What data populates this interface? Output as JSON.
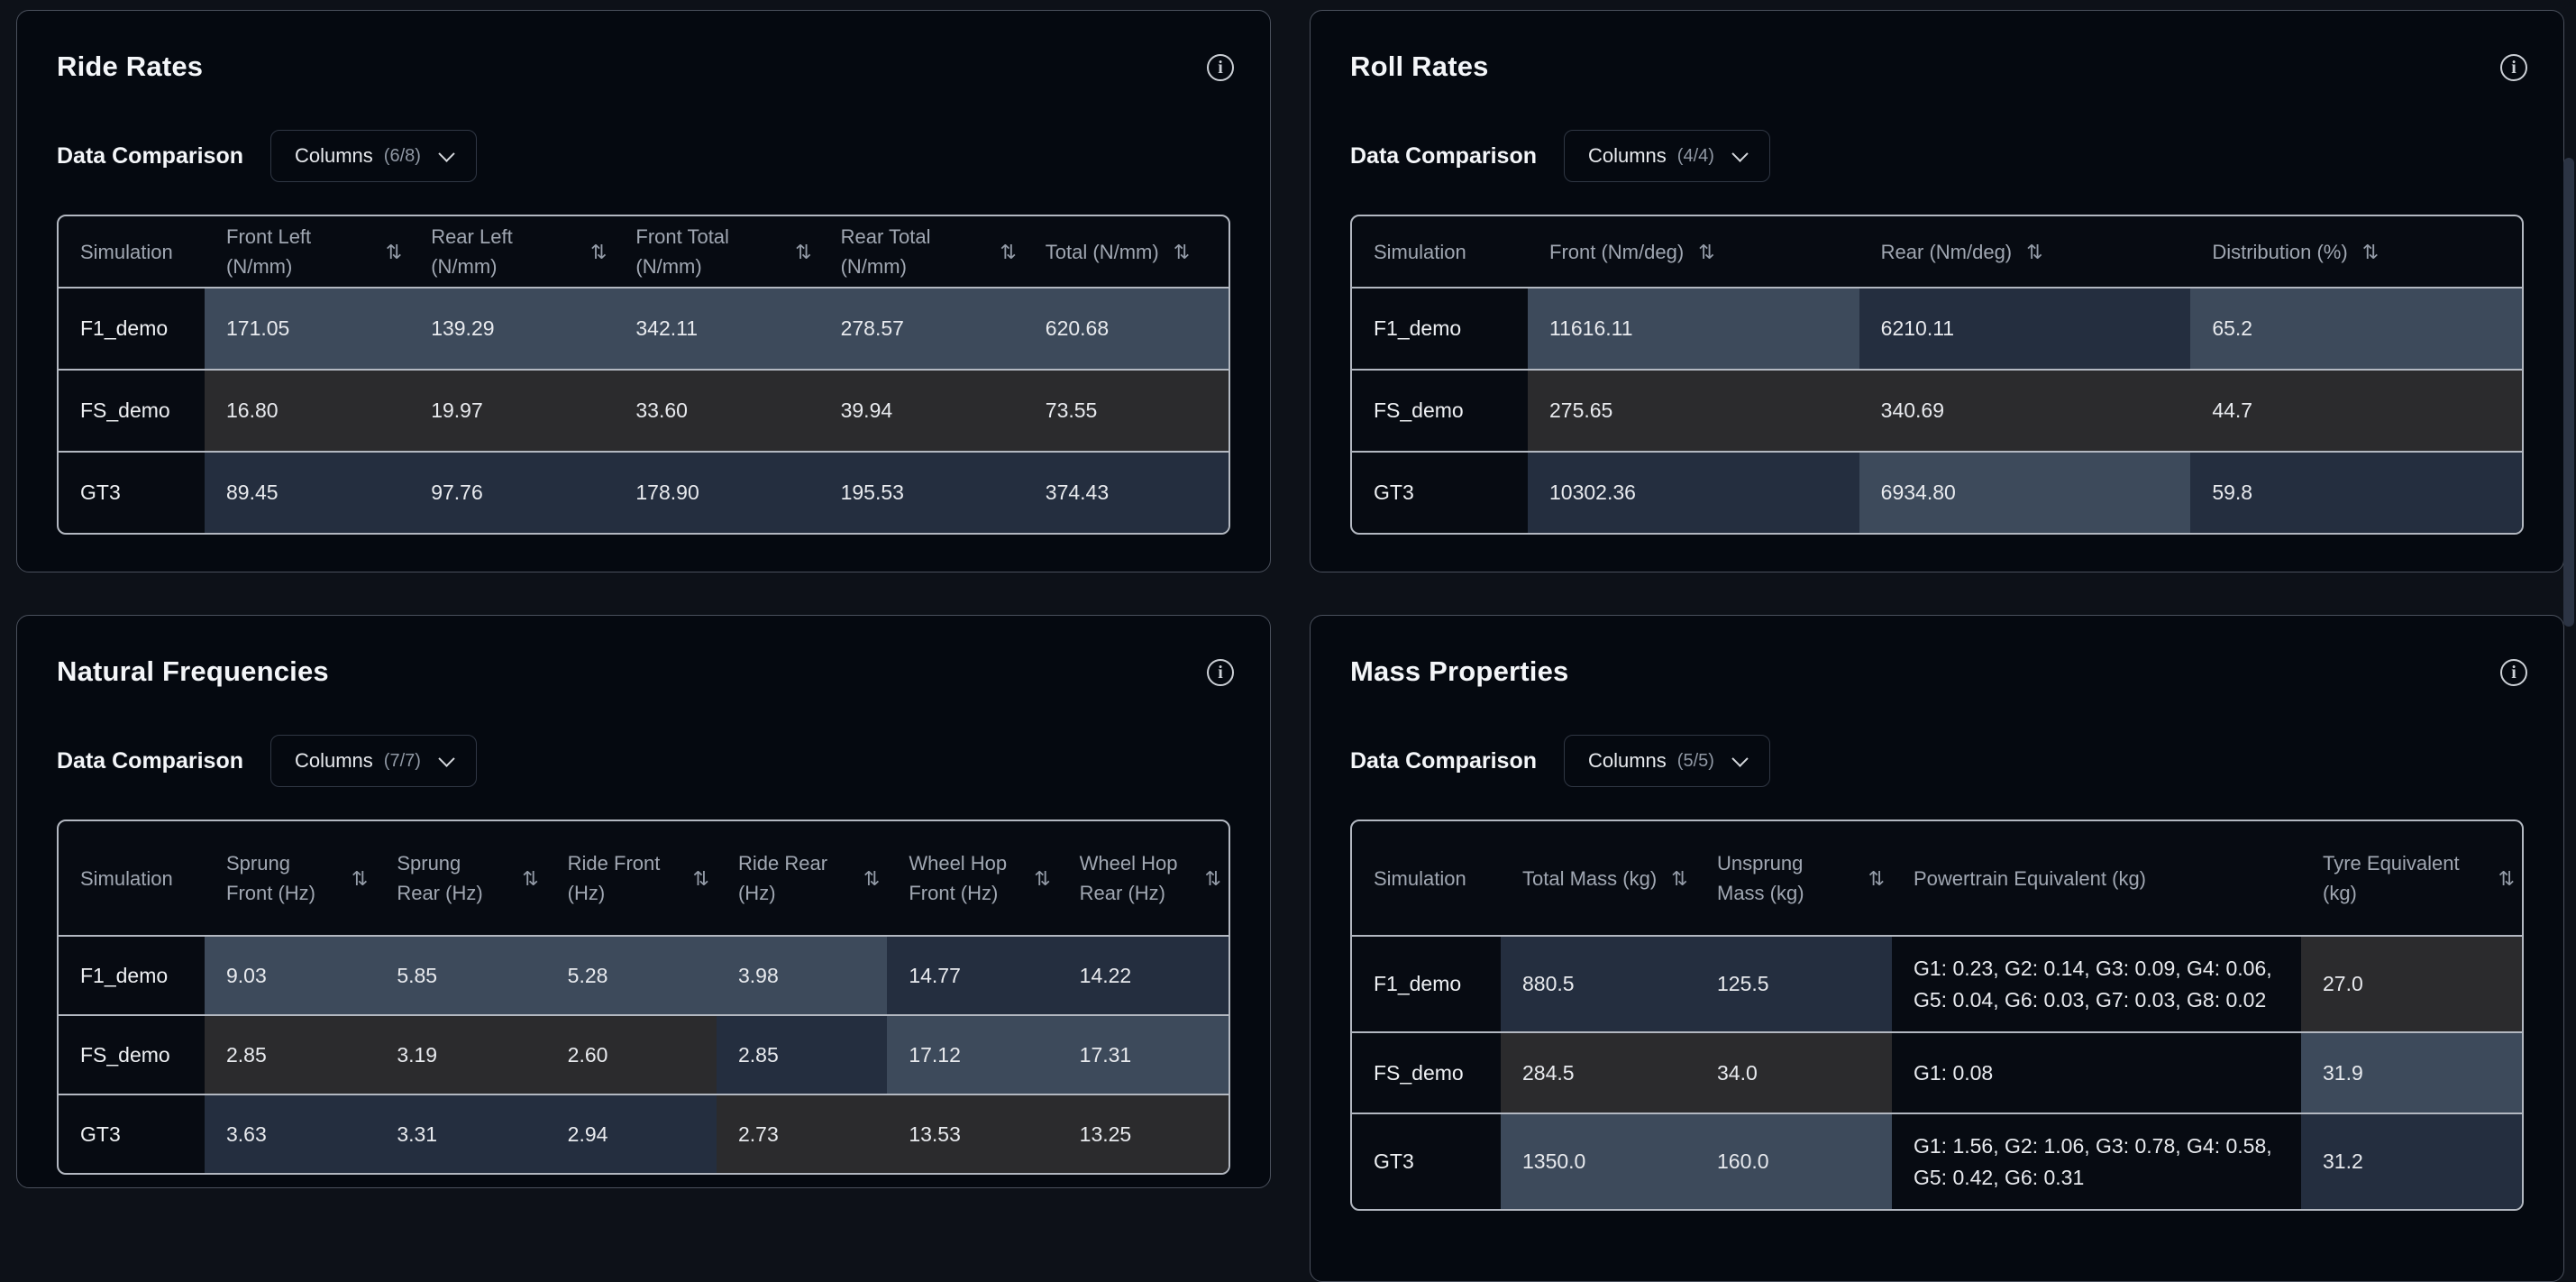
{
  "icons": {
    "info": "i",
    "sort": "⇅"
  },
  "colors": {
    "heat_high": "#3d4a5b",
    "heat_mid": "#242e3f",
    "heat_low": "#2b2b2d",
    "heat_none": "transparent",
    "card_bg": "#050910",
    "page_bg": "#0d1118",
    "table_border": "#b3b8c1"
  },
  "panels": [
    {
      "title": "Ride Rates",
      "section_label": "Data Comparison",
      "columns_button": {
        "label": "Columns",
        "count": "(6/8)"
      },
      "table": {
        "sim_header": "Simulation",
        "columns": [
          {
            "label": "Front Left (N/mm)",
            "sortable": true
          },
          {
            "label": "Rear Left (N/mm)",
            "sortable": true
          },
          {
            "label": "Front Total (N/mm)",
            "sortable": true
          },
          {
            "label": "Rear Total (N/mm)",
            "sortable": true
          },
          {
            "label": "Total (N/mm)",
            "sortable": true
          }
        ],
        "rows": [
          {
            "name": "F1_demo",
            "cells": [
              {
                "value": "171.05",
                "heat": "high"
              },
              {
                "value": "139.29",
                "heat": "high"
              },
              {
                "value": "342.11",
                "heat": "high"
              },
              {
                "value": "278.57",
                "heat": "high"
              },
              {
                "value": "620.68",
                "heat": "high"
              }
            ]
          },
          {
            "name": "FS_demo",
            "cells": [
              {
                "value": "16.80",
                "heat": "low"
              },
              {
                "value": "19.97",
                "heat": "low"
              },
              {
                "value": "33.60",
                "heat": "low"
              },
              {
                "value": "39.94",
                "heat": "low"
              },
              {
                "value": "73.55",
                "heat": "low"
              }
            ]
          },
          {
            "name": "GT3",
            "cells": [
              {
                "value": "89.45",
                "heat": "mid"
              },
              {
                "value": "97.76",
                "heat": "mid"
              },
              {
                "value": "178.90",
                "heat": "mid"
              },
              {
                "value": "195.53",
                "heat": "mid"
              },
              {
                "value": "374.43",
                "heat": "mid"
              }
            ]
          }
        ]
      }
    },
    {
      "title": "Roll Rates",
      "section_label": "Data Comparison",
      "columns_button": {
        "label": "Columns",
        "count": "(4/4)"
      },
      "table": {
        "sim_header": "Simulation",
        "columns": [
          {
            "label": "Front (Nm/deg)",
            "sortable": true
          },
          {
            "label": "Rear (Nm/deg)",
            "sortable": true
          },
          {
            "label": "Distribution (%)",
            "sortable": true
          }
        ],
        "rows": [
          {
            "name": "F1_demo",
            "cells": [
              {
                "value": "11616.11",
                "heat": "high"
              },
              {
                "value": "6210.11",
                "heat": "mid"
              },
              {
                "value": "65.2",
                "heat": "high"
              }
            ]
          },
          {
            "name": "FS_demo",
            "cells": [
              {
                "value": "275.65",
                "heat": "low"
              },
              {
                "value": "340.69",
                "heat": "low"
              },
              {
                "value": "44.7",
                "heat": "low"
              }
            ]
          },
          {
            "name": "GT3",
            "cells": [
              {
                "value": "10302.36",
                "heat": "mid"
              },
              {
                "value": "6934.80",
                "heat": "high"
              },
              {
                "value": "59.8",
                "heat": "mid"
              }
            ]
          }
        ]
      }
    },
    {
      "title": "Natural Frequencies",
      "section_label": "Data Comparison",
      "columns_button": {
        "label": "Columns",
        "count": "(7/7)"
      },
      "table": {
        "sim_header": "Simulation",
        "columns": [
          {
            "label": "Sprung Front (Hz)",
            "sortable": true
          },
          {
            "label": "Sprung Rear (Hz)",
            "sortable": true
          },
          {
            "label": "Ride Front (Hz)",
            "sortable": true
          },
          {
            "label": "Ride Rear (Hz)",
            "sortable": true
          },
          {
            "label": "Wheel Hop Front (Hz)",
            "sortable": true
          },
          {
            "label": "Wheel Hop Rear (Hz)",
            "sortable": true
          }
        ],
        "rows": [
          {
            "name": "F1_demo",
            "cells": [
              {
                "value": "9.03",
                "heat": "high"
              },
              {
                "value": "5.85",
                "heat": "high"
              },
              {
                "value": "5.28",
                "heat": "high"
              },
              {
                "value": "3.98",
                "heat": "high"
              },
              {
                "value": "14.77",
                "heat": "mid"
              },
              {
                "value": "14.22",
                "heat": "mid"
              }
            ]
          },
          {
            "name": "FS_demo",
            "cells": [
              {
                "value": "2.85",
                "heat": "low"
              },
              {
                "value": "3.19",
                "heat": "low"
              },
              {
                "value": "2.60",
                "heat": "low"
              },
              {
                "value": "2.85",
                "heat": "mid"
              },
              {
                "value": "17.12",
                "heat": "high"
              },
              {
                "value": "17.31",
                "heat": "high"
              }
            ]
          },
          {
            "name": "GT3",
            "cells": [
              {
                "value": "3.63",
                "heat": "mid"
              },
              {
                "value": "3.31",
                "heat": "mid"
              },
              {
                "value": "2.94",
                "heat": "mid"
              },
              {
                "value": "2.73",
                "heat": "low"
              },
              {
                "value": "13.53",
                "heat": "low"
              },
              {
                "value": "13.25",
                "heat": "low"
              }
            ]
          }
        ]
      }
    },
    {
      "title": "Mass Properties",
      "section_label": "Data Comparison",
      "columns_button": {
        "label": "Columns",
        "count": "(5/5)"
      },
      "table": {
        "sim_header": "Simulation",
        "columns": [
          {
            "label": "Total Mass (kg)",
            "sortable": true
          },
          {
            "label": "Unsprung Mass (kg)",
            "sortable": true
          },
          {
            "label": "Powertrain Equivalent (kg)",
            "sortable": false
          },
          {
            "label": "Tyre Equivalent (kg)",
            "sortable": true
          }
        ],
        "rows": [
          {
            "name": "F1_demo",
            "cells": [
              {
                "value": "880.5",
                "heat": "mid"
              },
              {
                "value": "125.5",
                "heat": "mid"
              },
              {
                "value": "G1: 0.23, G2: 0.14, G3: 0.09, G4: 0.06, G5: 0.04, G6: 0.03, G7: 0.03, G8: 0.02",
                "heat": "none"
              },
              {
                "value": "27.0",
                "heat": "low"
              }
            ]
          },
          {
            "name": "FS_demo",
            "cells": [
              {
                "value": "284.5",
                "heat": "low"
              },
              {
                "value": "34.0",
                "heat": "low"
              },
              {
                "value": "G1: 0.08",
                "heat": "none"
              },
              {
                "value": "31.9",
                "heat": "high"
              }
            ]
          },
          {
            "name": "GT3",
            "cells": [
              {
                "value": "1350.0",
                "heat": "high"
              },
              {
                "value": "160.0",
                "heat": "high"
              },
              {
                "value": "G1: 1.56, G2: 1.06, G3: 0.78, G4: 0.58, G5: 0.42, G6: 0.31",
                "heat": "none"
              },
              {
                "value": "31.2",
                "heat": "mid"
              }
            ]
          }
        ]
      }
    }
  ]
}
